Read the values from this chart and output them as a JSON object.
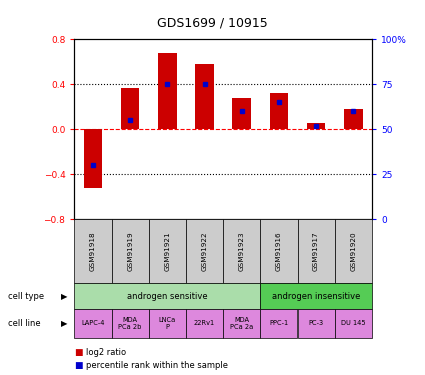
{
  "title": "GDS1699 / 10915",
  "samples": [
    "GSM91918",
    "GSM91919",
    "GSM91921",
    "GSM91922",
    "GSM91923",
    "GSM91916",
    "GSM91917",
    "GSM91920"
  ],
  "log2_ratio": [
    -0.52,
    0.37,
    0.68,
    0.58,
    0.28,
    0.32,
    0.06,
    0.18
  ],
  "percentile_rank": [
    30,
    55,
    75,
    75,
    60,
    65,
    52,
    60
  ],
  "ylim": [
    -0.8,
    0.8
  ],
  "yticks": [
    -0.8,
    -0.4,
    0.0,
    0.4,
    0.8
  ],
  "bar_color": "#cc0000",
  "pct_color": "#0000cc",
  "cell_types": [
    {
      "label": "androgen sensitive",
      "span": [
        0,
        5
      ],
      "color": "#aaddaa"
    },
    {
      "label": "androgen insensitive",
      "span": [
        5,
        8
      ],
      "color": "#55cc55"
    }
  ],
  "cell_lines": [
    {
      "label": "LAPC-4",
      "span": [
        0,
        1
      ]
    },
    {
      "label": "MDA\nPCa 2b",
      "span": [
        1,
        2
      ]
    },
    {
      "label": "LNCa\nP",
      "span": [
        2,
        3
      ]
    },
    {
      "label": "22Rv1",
      "span": [
        3,
        4
      ]
    },
    {
      "label": "MDA\nPCa 2a",
      "span": [
        4,
        5
      ]
    },
    {
      "label": "PPC-1",
      "span": [
        5,
        6
      ]
    },
    {
      "label": "PC-3",
      "span": [
        6,
        7
      ]
    },
    {
      "label": "DU 145",
      "span": [
        7,
        8
      ]
    }
  ],
  "cell_line_color": "#dd88dd",
  "sample_box_color": "#cccccc",
  "legend_items": [
    {
      "label": "log2 ratio",
      "color": "#cc0000"
    },
    {
      "label": "percentile rank within the sample",
      "color": "#0000cc"
    }
  ]
}
